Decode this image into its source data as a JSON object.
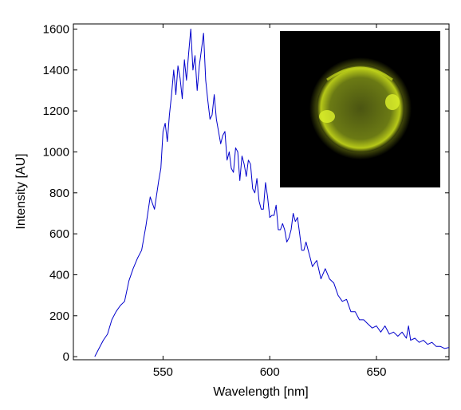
{
  "chart_data": {
    "type": "line",
    "xlabel": "Wavelength [nm]",
    "ylabel": "Intensity [AU]",
    "xlim": [
      508,
      684
    ],
    "ylim": [
      -15,
      1625
    ],
    "xticks": [
      550,
      600,
      650
    ],
    "xtick_labels": [
      "550",
      "600",
      "650"
    ],
    "yticks": [
      0,
      200,
      400,
      600,
      800,
      1000,
      1200,
      1400,
      1600
    ],
    "ytick_labels": [
      "0",
      "200",
      "400",
      "600",
      "800",
      "1000",
      "1200",
      "1400",
      "1600"
    ],
    "grid": false,
    "series": [
      {
        "color": "#0000cc",
        "x": [
          518,
          520,
          522,
          524,
          526,
          528,
          530,
          532,
          534,
          536,
          538,
          540,
          542,
          544,
          546,
          548,
          549,
          550,
          551,
          552,
          553,
          554,
          555,
          556,
          557,
          558,
          559,
          560,
          561,
          562,
          563,
          564,
          565,
          566,
          567,
          568,
          569,
          570,
          571,
          572,
          573,
          574,
          575,
          576,
          577,
          578,
          579,
          580,
          581,
          582,
          583,
          584,
          585,
          586,
          587,
          588,
          589,
          590,
          591,
          592,
          593,
          594,
          595,
          596,
          597,
          598,
          599,
          600,
          601,
          602,
          603,
          604,
          605,
          606,
          607,
          608,
          609,
          610,
          611,
          612,
          613,
          614,
          615,
          616,
          617,
          618,
          619,
          620,
          622,
          624,
          626,
          628,
          630,
          632,
          634,
          636,
          638,
          640,
          642,
          644,
          646,
          648,
          650,
          652,
          654,
          656,
          658,
          660,
          662,
          664,
          665,
          666,
          668,
          670,
          672,
          674,
          676,
          678,
          680,
          682,
          684
        ],
        "y": [
          0,
          40,
          80,
          110,
          180,
          220,
          250,
          270,
          370,
          430,
          480,
          520,
          640,
          780,
          720,
          860,
          920,
          1100,
          1140,
          1050,
          1180,
          1280,
          1400,
          1280,
          1420,
          1360,
          1260,
          1450,
          1350,
          1480,
          1600,
          1400,
          1470,
          1300,
          1420,
          1500,
          1580,
          1350,
          1250,
          1160,
          1180,
          1280,
          1160,
          1100,
          1040,
          1080,
          1100,
          960,
          1000,
          920,
          900,
          1020,
          1000,
          860,
          980,
          940,
          880,
          960,
          940,
          820,
          800,
          870,
          760,
          720,
          720,
          850,
          780,
          680,
          690,
          690,
          740,
          620,
          620,
          650,
          620,
          560,
          580,
          620,
          700,
          660,
          680,
          600,
          520,
          520,
          560,
          520,
          480,
          440,
          470,
          380,
          430,
          380,
          360,
          300,
          270,
          280,
          220,
          220,
          180,
          180,
          160,
          140,
          150,
          120,
          150,
          110,
          120,
          100,
          120,
          90,
          150,
          80,
          90,
          70,
          80,
          60,
          70,
          50,
          50,
          40,
          45
        ]
      }
    ]
  },
  "inset_image": {
    "subject": "fluorescent cell",
    "background_color": "#000000",
    "glow_color": "#c8dc1e"
  }
}
